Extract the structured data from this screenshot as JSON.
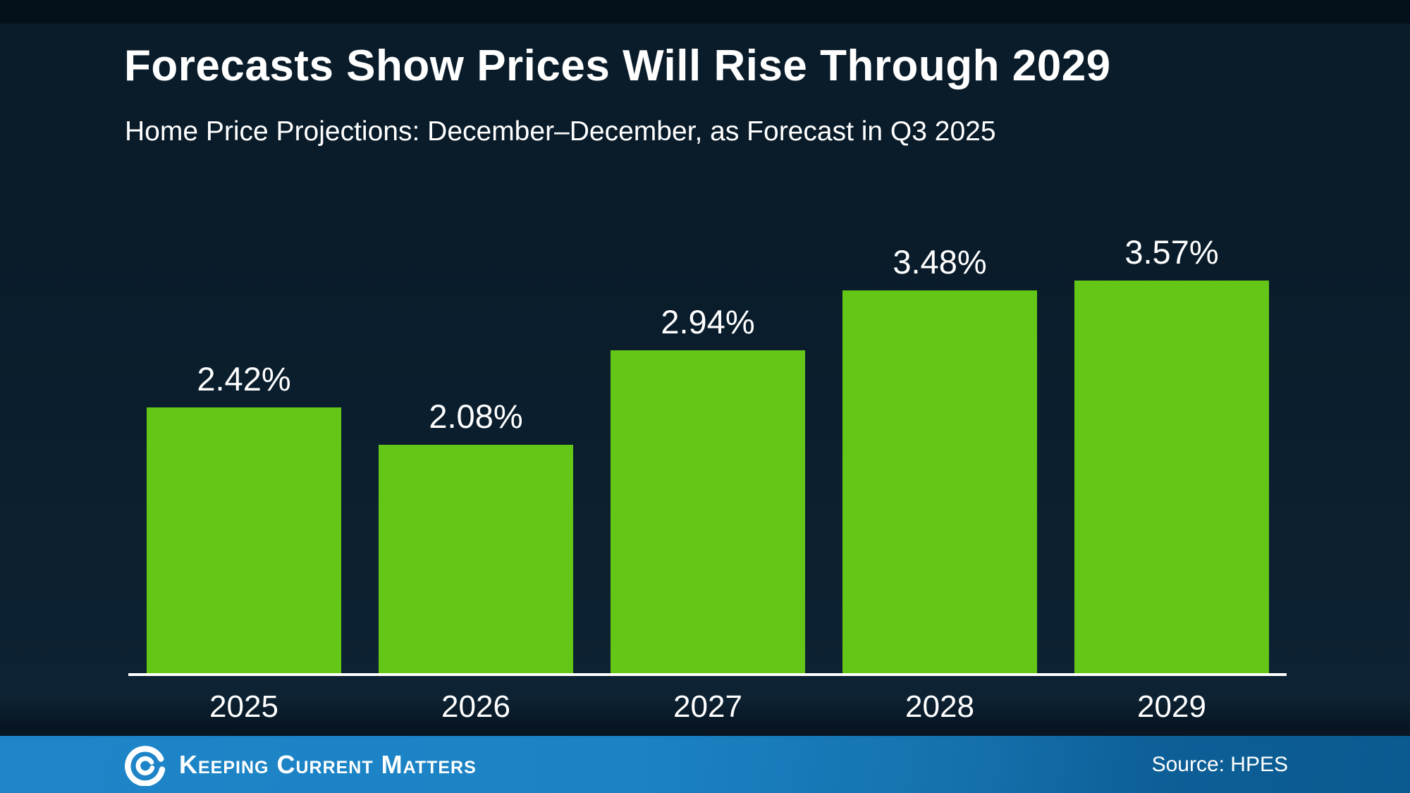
{
  "chart_data": {
    "type": "bar",
    "title": "Forecasts Show Prices Will Rise Through 2029",
    "subtitle": "Home Price Projections: December–December, as Forecast in Q3 2025",
    "categories": [
      "2025",
      "2026",
      "2027",
      "2028",
      "2029"
    ],
    "values": [
      2.42,
      2.08,
      2.94,
      3.48,
      3.57
    ],
    "value_labels": [
      "2.42%",
      "2.08%",
      "2.94%",
      "3.48%",
      "3.57%"
    ],
    "xlabel": "",
    "ylabel": "",
    "ylim": [
      0,
      4.2
    ],
    "grid": false,
    "legend": false,
    "bar_color": "#64C718",
    "label_color": "#FFFFFF",
    "axis_line_color": "#FFFFFF",
    "background_color": "#0B1E2D"
  },
  "footer": {
    "logo_icon": "kcm-swirl-icon",
    "brand": "Keeping Current Matters",
    "source": "Source: HPES",
    "bg_color_left": "#1E86C8",
    "bg_color_right": "#0B5A90"
  }
}
